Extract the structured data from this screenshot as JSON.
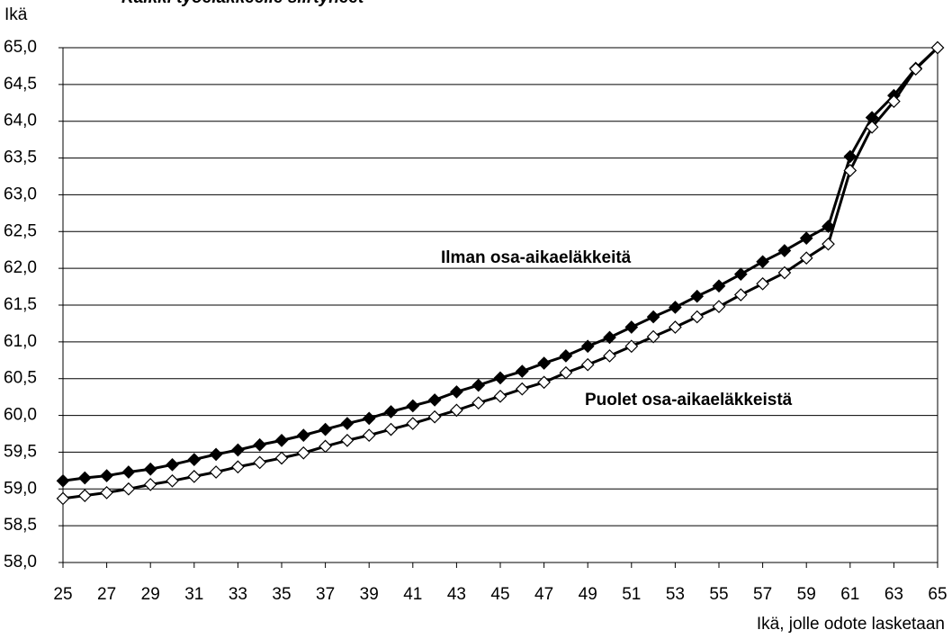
{
  "chart_data": {
    "type": "line",
    "title": "Kaikki työeläkkeelle siirtyneet",
    "y_label": "Ikä",
    "x_label": "Ikä, jolle odote lasketaan",
    "x": [
      25,
      26,
      27,
      28,
      29,
      30,
      31,
      32,
      33,
      34,
      35,
      36,
      37,
      38,
      39,
      40,
      41,
      42,
      43,
      44,
      45,
      46,
      47,
      48,
      49,
      50,
      51,
      52,
      53,
      54,
      55,
      56,
      57,
      58,
      59,
      60,
      61,
      62,
      63,
      64,
      65
    ],
    "series": [
      {
        "name": "Ilman osa-aikaeläkkeitä",
        "color": "#000000",
        "marker_fill": "#000000",
        "values": [
          59.11,
          59.15,
          59.18,
          59.23,
          59.27,
          59.33,
          59.4,
          59.47,
          59.53,
          59.6,
          59.66,
          59.73,
          59.81,
          59.89,
          59.96,
          60.05,
          60.13,
          60.21,
          60.32,
          60.41,
          60.51,
          60.6,
          60.71,
          60.81,
          60.94,
          61.06,
          61.2,
          61.34,
          61.47,
          61.62,
          61.76,
          61.92,
          62.09,
          62.24,
          62.41,
          62.57,
          63.52,
          64.05,
          64.35,
          64.72,
          65.0
        ]
      },
      {
        "name": "Puolet osa-aikaeläkkeistä",
        "color": "#000000",
        "marker_fill": "#ffffff",
        "values": [
          58.87,
          58.91,
          58.95,
          59.0,
          59.06,
          59.11,
          59.17,
          59.23,
          59.3,
          59.36,
          59.42,
          59.49,
          59.58,
          59.66,
          59.73,
          59.81,
          59.89,
          59.98,
          60.07,
          60.17,
          60.26,
          60.36,
          60.45,
          60.58,
          60.69,
          60.81,
          60.94,
          61.07,
          61.2,
          61.34,
          61.48,
          61.64,
          61.79,
          61.94,
          62.14,
          62.33,
          63.33,
          63.92,
          64.27,
          64.71,
          65.0
        ]
      }
    ],
    "xlim": [
      25,
      65
    ],
    "xticks": [
      25,
      27,
      29,
      31,
      33,
      35,
      37,
      39,
      41,
      43,
      45,
      47,
      49,
      51,
      53,
      55,
      57,
      59,
      61,
      63,
      65
    ],
    "ylim": [
      58,
      65
    ],
    "yticks": [
      {
        "value": 58,
        "label": "58,0"
      },
      {
        "value": 58.5,
        "label": "58,5"
      },
      {
        "value": 59,
        "label": "59,0"
      },
      {
        "value": 59.5,
        "label": "59,5"
      },
      {
        "value": 60,
        "label": "60,0"
      },
      {
        "value": 60.5,
        "label": "60,5"
      },
      {
        "value": 61,
        "label": "61,0"
      },
      {
        "value": 61.5,
        "label": "61,5"
      },
      {
        "value": 62,
        "label": "62,0"
      },
      {
        "value": 62.5,
        "label": "62,5"
      },
      {
        "value": 63,
        "label": "63,0"
      },
      {
        "value": 63.5,
        "label": "63,5"
      },
      {
        "value": 64,
        "label": "64,0"
      },
      {
        "value": 64.5,
        "label": "64,5"
      },
      {
        "value": 65,
        "label": "65,0"
      }
    ],
    "grid": true
  }
}
